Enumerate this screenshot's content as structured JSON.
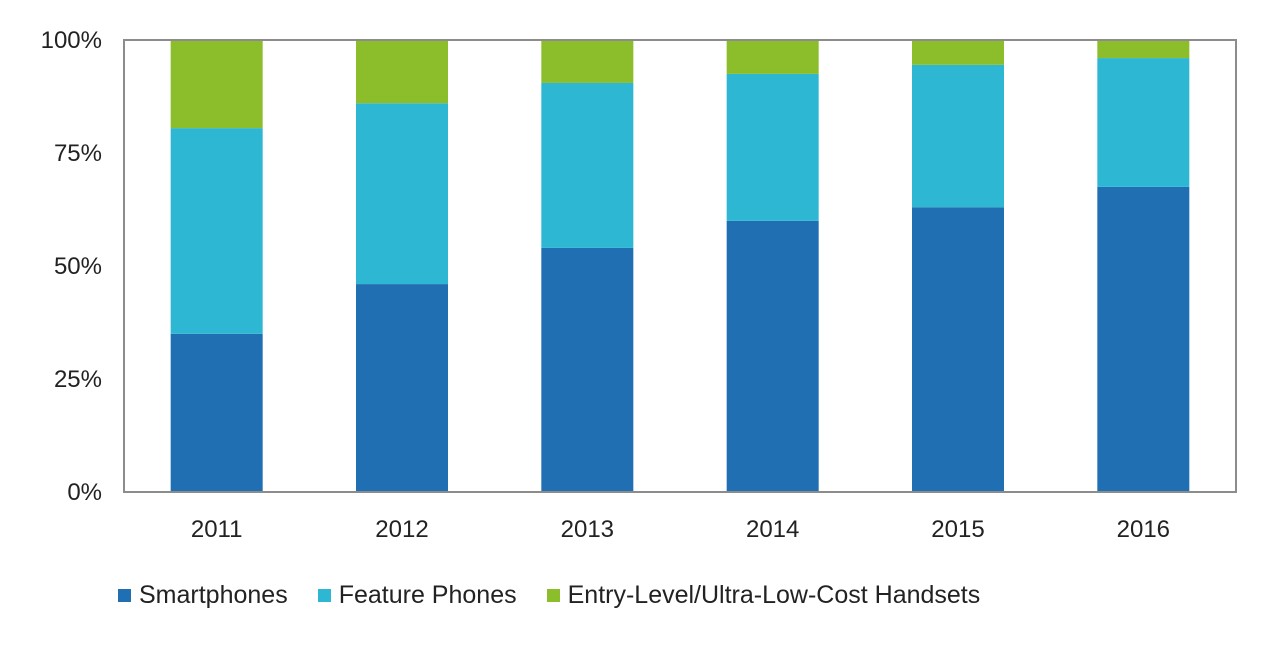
{
  "chart_data": {
    "type": "bar",
    "stacked": true,
    "percent_scale": true,
    "categories": [
      "2011",
      "2012",
      "2013",
      "2014",
      "2015",
      "2016"
    ],
    "series": [
      {
        "name": "Smartphones",
        "color": "#1f6fb2",
        "values": [
          35,
          46,
          54,
          60,
          63,
          67.5
        ]
      },
      {
        "name": "Feature Phones",
        "color": "#2eb7d3",
        "values": [
          45.5,
          40,
          36.5,
          32.5,
          31.5,
          28.5
        ]
      },
      {
        "name": "Entry-Level/Ultra-Low-Cost Handsets",
        "color": "#8cbd2a",
        "values": [
          19.5,
          14,
          9.5,
          7.5,
          5.5,
          4
        ]
      }
    ],
    "ylim": [
      0,
      100
    ],
    "yticks": [
      0,
      25,
      50,
      75,
      100
    ],
    "ytick_labels": [
      "0%",
      "25%",
      "50%",
      "75%",
      "100%"
    ],
    "title": "",
    "xlabel": "",
    "ylabel": "",
    "grid": false,
    "legend_position": "bottom"
  }
}
